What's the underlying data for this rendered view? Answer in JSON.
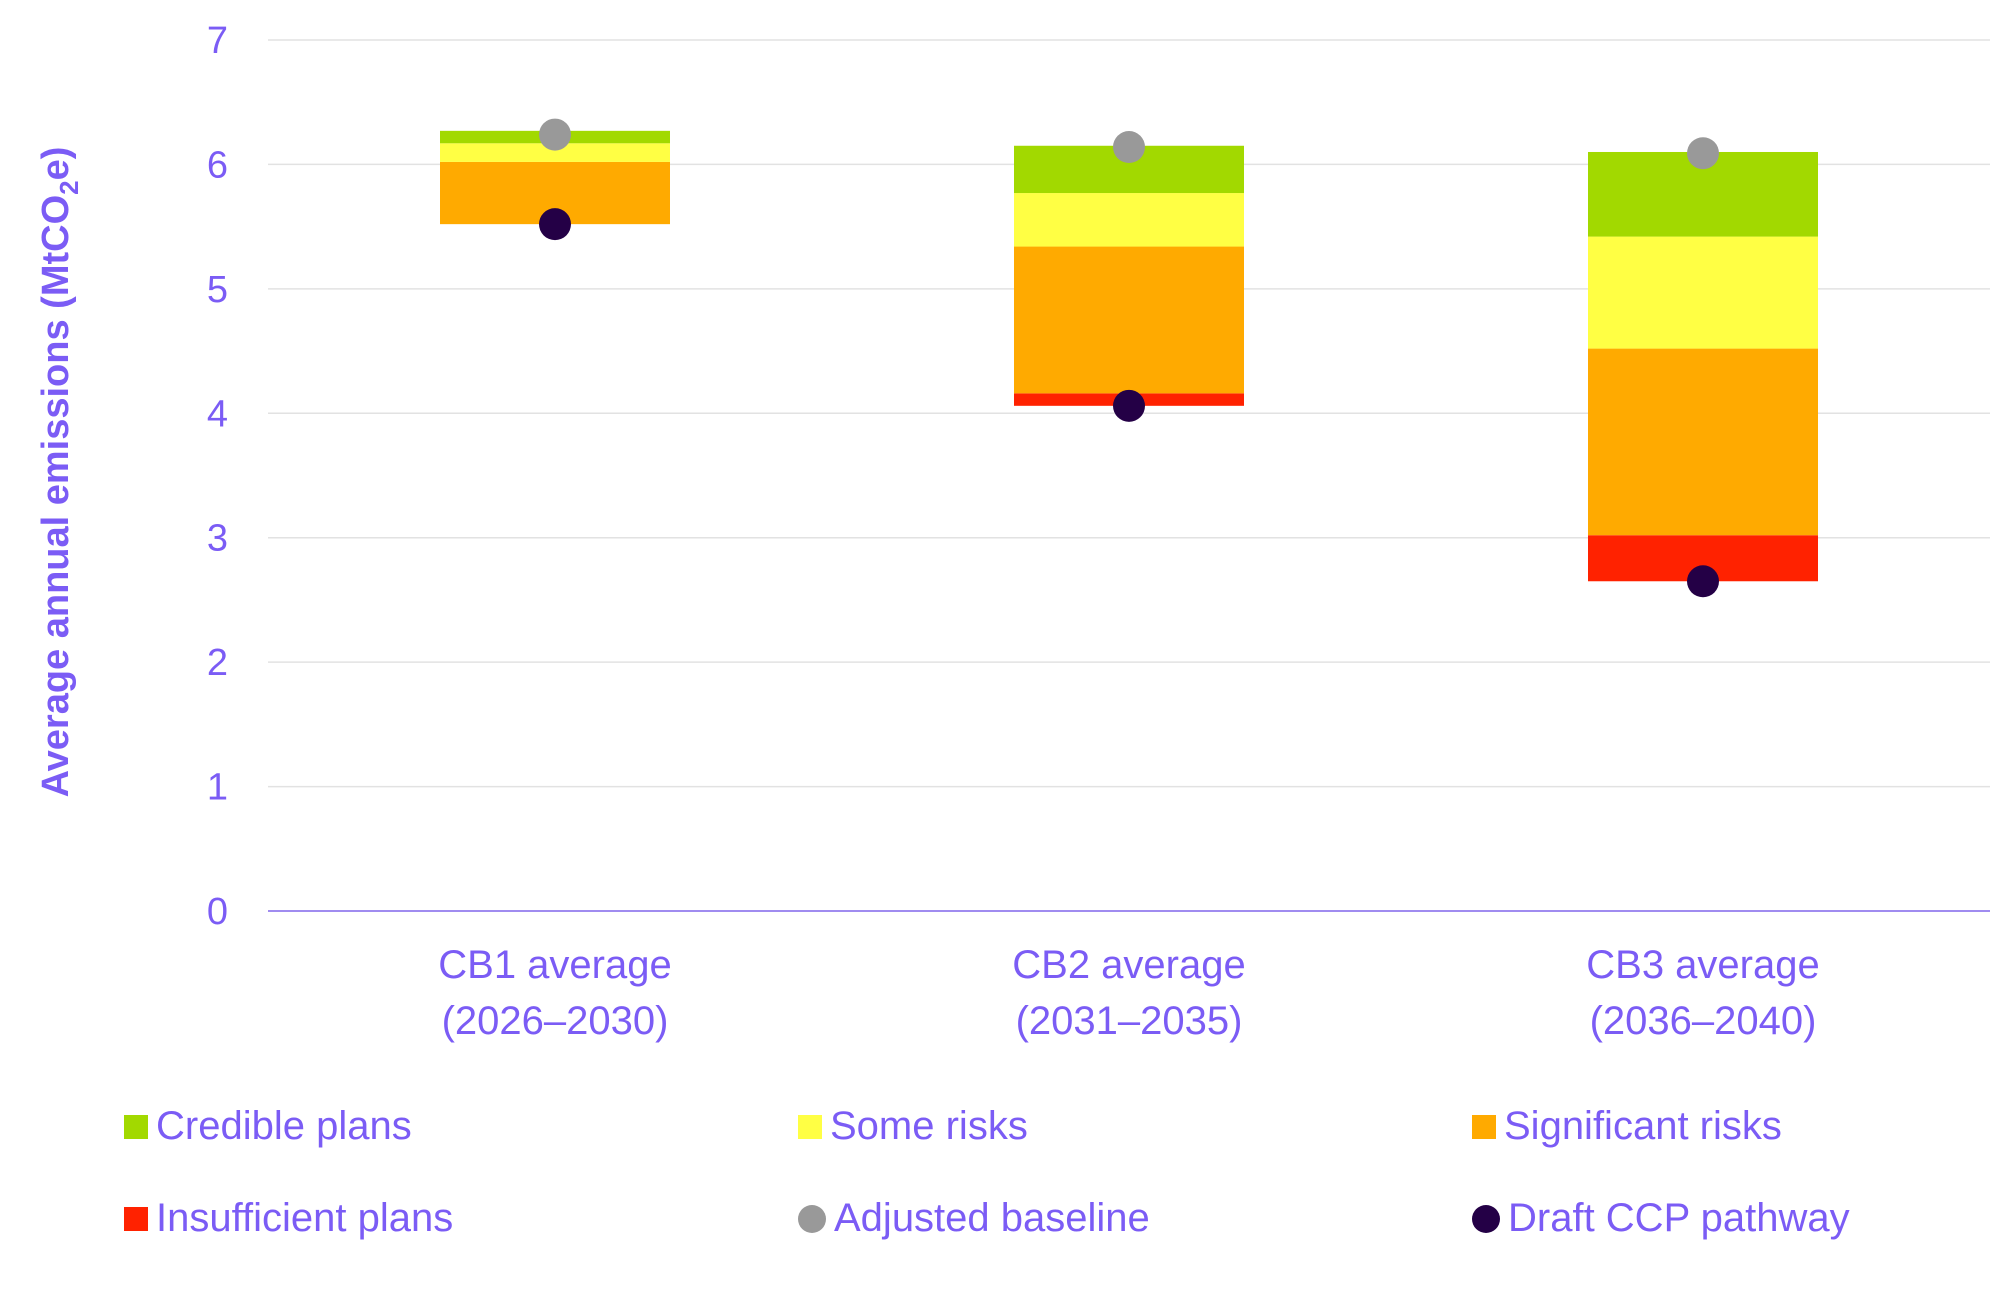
{
  "chart_data": {
    "type": "stacked-floating-bar",
    "ylabel": "Average annual emissions (MtCO2e)",
    "ylabel_parts": {
      "pre": "Average annual emissions (MtCO",
      "sub": "2",
      "post": "e)"
    },
    "ylim": [
      0,
      7
    ],
    "yticks": [
      0,
      1,
      2,
      3,
      4,
      5,
      6,
      7
    ],
    "gridlines": true,
    "categories": [
      {
        "line1": "CB1 average",
        "line2": "(2026–2030)"
      },
      {
        "line1": "CB2 average",
        "line2": "(2031–2035)"
      },
      {
        "line1": "CB3 average",
        "line2": "(2036–2040)"
      }
    ],
    "series": [
      {
        "name": "Insufficient plans",
        "color": "#ff2200",
        "values": [
          0,
          0.1,
          0.37
        ]
      },
      {
        "name": "Significant risks",
        "color": "#ffaa00",
        "values": [
          0.5,
          1.18,
          1.5
        ]
      },
      {
        "name": "Some risks",
        "color": "#ffff44",
        "values": [
          0.15,
          0.43,
          0.9
        ]
      },
      {
        "name": "Credible plans",
        "color": "#a2d900",
        "values": [
          0.1,
          0.38,
          0.68
        ]
      }
    ],
    "bar_base": [
      5.52,
      4.06,
      2.65
    ],
    "points": [
      {
        "name": "Adjusted baseline",
        "color": "#999999",
        "values": [
          6.24,
          6.14,
          6.09
        ]
      },
      {
        "name": "Draft CCP pathway",
        "color": "#240046",
        "values": [
          5.52,
          4.06,
          2.65
        ]
      }
    ],
    "legend": [
      {
        "label": "Credible plans",
        "marker": "square",
        "color": "#a2d900"
      },
      {
        "label": "Some risks",
        "marker": "square",
        "color": "#ffff44"
      },
      {
        "label": "Significant risks",
        "marker": "square",
        "color": "#ffaa00"
      },
      {
        "label": "Insufficient plans",
        "marker": "square",
        "color": "#ff2200"
      },
      {
        "label": "Adjusted baseline",
        "marker": "circle",
        "color": "#999999"
      },
      {
        "label": "Draft CCP pathway",
        "marker": "circle",
        "color": "#240046"
      }
    ]
  }
}
